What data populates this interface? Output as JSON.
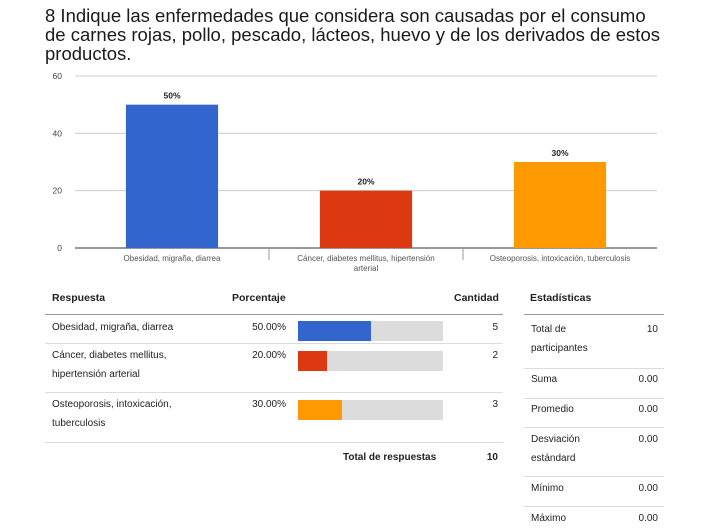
{
  "question_title": "8 Indique las enfermedades que considera son causadas por el consumo de carnes rojas, pollo, pescado, lácteos, huevo y de los derivados de estos productos.",
  "chart_data": {
    "type": "bar",
    "categories": [
      "Obesidad, migraña, diarrea",
      "Cáncer, diabetes mellitus, hipertensión arterial",
      "Osteoporosis, intoxicación, tuberculosis"
    ],
    "category_tick_lines": [
      [
        "Obesidad, migraña, diarrea"
      ],
      [
        "Cáncer, diabetes mellitus, hipertensión",
        "arterial"
      ],
      [
        "Osteoporosis, intoxicación, tuberculosis"
      ]
    ],
    "values": [
      50,
      20,
      30
    ],
    "data_labels": [
      "50%",
      "20%",
      "30%"
    ],
    "colors": [
      "#3366cc",
      "#dc3912",
      "#ff9900"
    ],
    "ylim": [
      0,
      60
    ],
    "yticks": [
      0,
      20,
      40,
      60
    ],
    "grid": true,
    "title": "",
    "xlabel": "",
    "ylabel": ""
  },
  "table": {
    "headers": {
      "response": "Respuesta",
      "percent": "Porcentaje",
      "count": "Cantidad"
    },
    "rows": [
      {
        "label_lines": [
          "Obesidad, migraña, diarrea"
        ],
        "percent_text": "50.00%",
        "fraction": 0.5,
        "count": "5",
        "color": "#3366cc"
      },
      {
        "label_lines": [
          "Cáncer, diabetes mellitus,",
          "hipertensión arterial"
        ],
        "percent_text": "20.00%",
        "fraction": 0.2,
        "count": "2",
        "color": "#dc3912"
      },
      {
        "label_lines": [
          "Osteoporosis, intoxicación,",
          "tuberculosis"
        ],
        "percent_text": "30.00%",
        "fraction": 0.3,
        "count": "3",
        "color": "#ff9900"
      }
    ],
    "total_label": "Total de respuestas",
    "total_value": "10"
  },
  "stats": {
    "header": "Estadísticas",
    "rows": [
      {
        "label_lines": [
          "Total de",
          "participantes"
        ],
        "value": "10"
      },
      {
        "label_lines": [
          "Suma"
        ],
        "value": "0.00"
      },
      {
        "label_lines": [
          "Promedio"
        ],
        "value": "0.00"
      },
      {
        "label_lines": [
          "Desviación",
          "estándard"
        ],
        "value": "0.00"
      },
      {
        "label_lines": [
          "Mínimo"
        ],
        "value": "0.00"
      },
      {
        "label_lines": [
          "Máximo"
        ],
        "value": "0.00"
      }
    ]
  }
}
